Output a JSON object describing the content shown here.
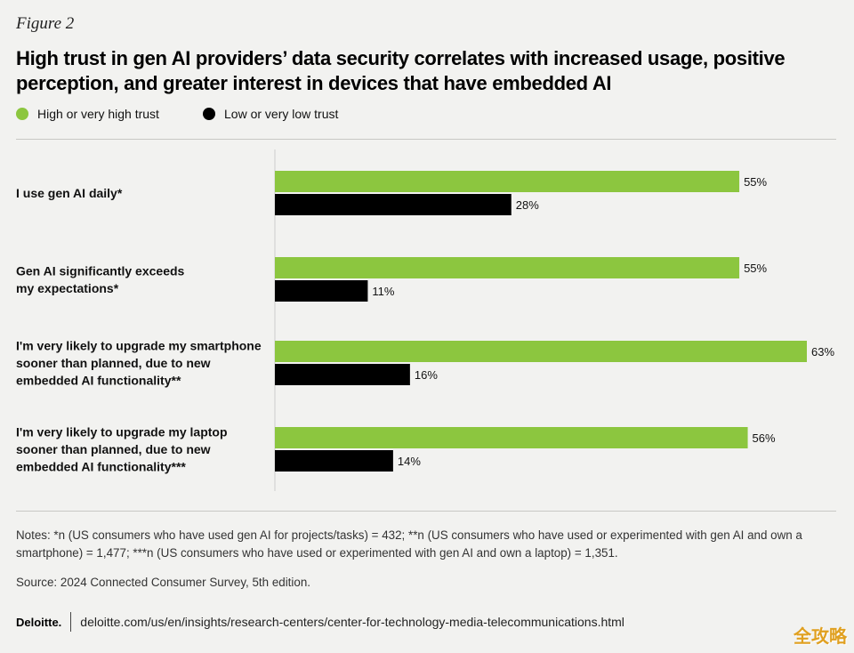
{
  "figure_label": "Figure 2",
  "title": "High trust in gen AI providers’ data security correlates with increased usage, positive perception, and greater interest in devices that have embedded AI",
  "colors": {
    "high": "#8cc63f",
    "low": "#000000",
    "axis": "#cccccc"
  },
  "chart_data": {
    "type": "bar",
    "orientation": "horizontal",
    "categories": [
      [
        "I use gen AI daily*"
      ],
      [
        "Gen AI significantly exceeds",
        "my expectations*"
      ],
      [
        "I'm very likely to upgrade my smartphone",
        "sooner than planned, due to new",
        "embedded AI functionality**"
      ],
      [
        "I'm very likely to upgrade my laptop",
        "sooner than planned, due to new",
        "embedded AI functionality***"
      ]
    ],
    "series": [
      {
        "name": "High or very high trust",
        "values": [
          55,
          55,
          63,
          56
        ],
        "labels": [
          "55%",
          "55%",
          "63%",
          "56%"
        ]
      },
      {
        "name": "Low or very low trust",
        "values": [
          28,
          11,
          16,
          14
        ],
        "labels": [
          "28%",
          "11%",
          "16%",
          "14%"
        ]
      }
    ],
    "legend_position": "top-left",
    "grid": false,
    "xlim": [
      0,
      63
    ]
  },
  "notes": "Notes: *n (US consumers who have used gen AI for projects/tasks) = 432; **n (US consumers who have used or experimented with gen AI and own a smartphone) = 1,477; ***n (US consumers who have used or experimented with gen AI and own a laptop) = 1,351.",
  "source": "Source: 2024 Connected Consumer Survey, 5th edition.",
  "footer": {
    "brand": "Deloitte.",
    "url": "deloitte.com/us/en/insights/research-centers/center-for-technology-media-telecommunications.html"
  },
  "watermark": "全攻略"
}
